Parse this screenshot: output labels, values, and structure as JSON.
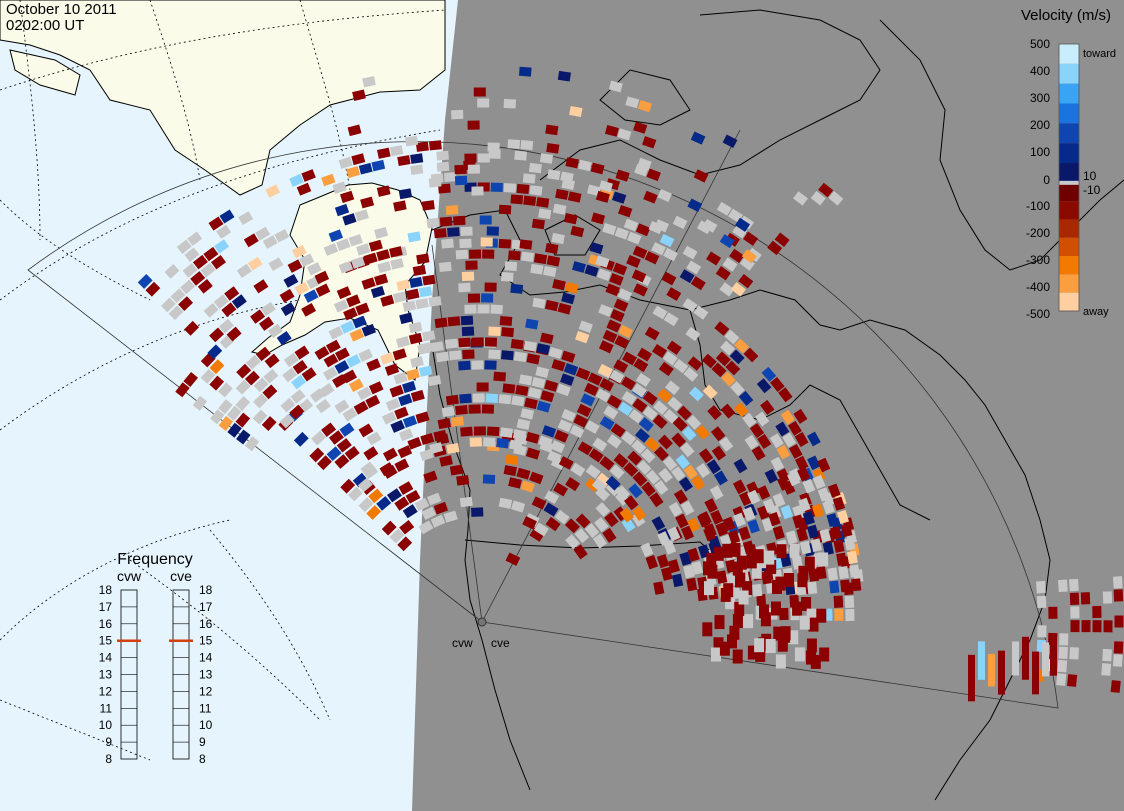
{
  "header": {
    "date": "October 10 2011",
    "time": "0202:00 UT"
  },
  "colors": {
    "ocean": "#e6f5fd",
    "land_day": "#fafbe9",
    "night_shade": "#909090",
    "ground_scatter": "#c8c8c8"
  },
  "map": {
    "radars": [
      {
        "code": "cvw"
      },
      {
        "code": "cve"
      }
    ]
  },
  "velocity_scale": {
    "title": "Velocity (m/s)",
    "tick_labels": [
      "500",
      "400",
      "300",
      "200",
      "100",
      "10",
      "0",
      "-10",
      "-100",
      "-200",
      "-300",
      "-400",
      "-500"
    ],
    "toward_label": "toward",
    "away_label": "away",
    "colors": [
      "#c8eefe",
      "#8ad3fa",
      "#3ba4f2",
      "#1a73de",
      "#0f45b0",
      "#062a8a",
      "#0a186a",
      "#6e0000",
      "#8b0a00",
      "#a82800",
      "#d04f00",
      "#f27a00",
      "#fa9e40",
      "#ffcfa0"
    ]
  },
  "frequency": {
    "title": "Frequency",
    "left_label": "cvw",
    "right_label": "cve",
    "ticks": [
      "18",
      "17",
      "16",
      "15",
      "14",
      "13",
      "12",
      "11",
      "10",
      "9",
      "8"
    ],
    "cvw_value": 15,
    "cve_value": 15,
    "marker_color": "#d04010"
  }
}
